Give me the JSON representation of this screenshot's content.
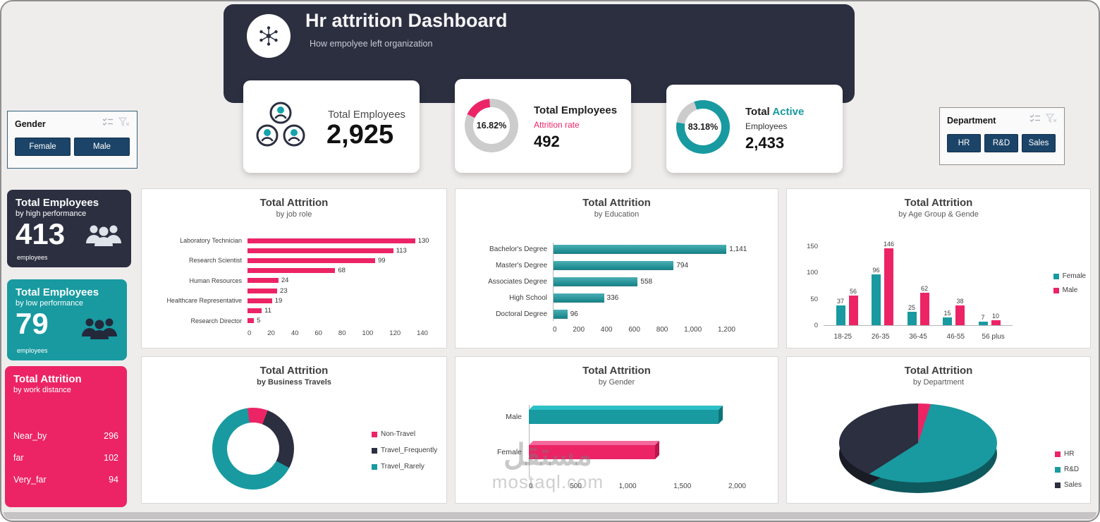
{
  "colors": {
    "navy": "#2b2f40",
    "teal": "#189aa0",
    "pink": "#ec2466",
    "gray_ring": "#cccccc",
    "button_navy": "#1b4468"
  },
  "header": {
    "title": "Hr attrition Dashboard",
    "subtitle": "How empolyee left organization"
  },
  "kpis": {
    "employees": {
      "label": "Total Employees",
      "value": "2,925"
    },
    "attrition": {
      "label": "Total Employees",
      "sublabel": "Attrition rate",
      "percent": "16.82%",
      "value": "492"
    },
    "active": {
      "label_1": "Total",
      "label_accent": "Active",
      "label_2": "Employees",
      "percent": "83.18%",
      "value": "2,433"
    }
  },
  "slicers": {
    "gender": {
      "title": "Gender",
      "options": [
        "Female",
        "Male"
      ]
    },
    "department": {
      "title": "Department",
      "options": [
        "HR",
        "R&D",
        "Sales"
      ]
    }
  },
  "side_cards": {
    "high": {
      "title": "Total Employees",
      "subtitle": "by high performance",
      "value": "413",
      "unit": "employees"
    },
    "low": {
      "title": "Total Employees",
      "subtitle": "by low performance",
      "value": "79",
      "unit": "employees"
    },
    "distance": {
      "title": "Total Attrition",
      "subtitle": "by work distance",
      "rows": [
        {
          "label": "Near_by",
          "value": "296"
        },
        {
          "label": "far",
          "value": "102"
        },
        {
          "label": "Very_far",
          "value": "94"
        }
      ]
    }
  },
  "chart_data": [
    {
      "id": "job-role",
      "type": "bar",
      "orientation": "horizontal",
      "title": "Total Attrition",
      "subtitle": "by job role",
      "color": "#ec2466",
      "xmax": 140,
      "xticks": [
        "0",
        "20",
        "40",
        "60",
        "80",
        "100",
        "120",
        "140"
      ],
      "items": [
        {
          "label": "Laboratory Technician",
          "value": 130
        },
        {
          "label": "",
          "value": 113
        },
        {
          "label": "Research Scientist",
          "value": 99
        },
        {
          "label": "",
          "value": 68
        },
        {
          "label": "Human Resources",
          "value": 24
        },
        {
          "label": "",
          "value": 23
        },
        {
          "label": "Healthcare Representative",
          "value": 19
        },
        {
          "label": "",
          "value": 11
        },
        {
          "label": "Research Director",
          "value": 5
        }
      ]
    },
    {
      "id": "education",
      "type": "bar",
      "orientation": "horizontal",
      "title": "Total Attrition",
      "subtitle": "by Education",
      "color": "#189aa0",
      "xmax": 1200,
      "xticks": [
        "0",
        "200",
        "400",
        "600",
        "800",
        "1,000",
        "1,200"
      ],
      "items": [
        {
          "label": "Bachelor's Degree",
          "value": 1141,
          "display": "1,141"
        },
        {
          "label": "Master's Degree",
          "value": 794,
          "display": "794"
        },
        {
          "label": "Associates Degree",
          "value": 558,
          "display": "558"
        },
        {
          "label": "High School",
          "value": 336,
          "display": "336"
        },
        {
          "label": "Doctoral Degree",
          "value": 96,
          "display": "96"
        }
      ]
    },
    {
      "id": "age-gender",
      "type": "bar",
      "grouped": true,
      "title": "Total Attrition",
      "subtitle": "by Age Group & Gende",
      "categories": [
        "18-25",
        "26-35",
        "36-45",
        "46-55",
        "56 plus"
      ],
      "series": [
        {
          "name": "Female",
          "color": "#189aa0",
          "values": [
            37,
            96,
            25,
            15,
            7
          ]
        },
        {
          "name": "Male",
          "color": "#ec2466",
          "values": [
            56,
            146,
            62,
            38,
            10
          ]
        }
      ],
      "yticks": [
        0,
        50,
        100,
        150
      ],
      "ymax": 160
    },
    {
      "id": "business-travel",
      "type": "pie",
      "donut": true,
      "title": "Total Attrition",
      "subtitle": "by Business Travels",
      "segments": [
        {
          "name": "Non-Travel",
          "color": "#ec2466",
          "percent": 8
        },
        {
          "name": "Travel_Frequently",
          "color": "#2b2f40",
          "percent": 27
        },
        {
          "name": "Travel_Rarely",
          "color": "#189aa0",
          "percent": 65
        }
      ]
    },
    {
      "id": "gender",
      "type": "bar",
      "orientation": "horizontal",
      "style": "3d",
      "title": "Total Attrition",
      "subtitle": "by Gender",
      "xmax": 2000,
      "xticks": [
        "0",
        "500",
        "1,000",
        "1,500",
        "2,000"
      ],
      "items": [
        {
          "label": "Male",
          "value": 1755,
          "color": "#189aa0",
          "light": "#2cc0c6",
          "dark": "#0e747a"
        },
        {
          "label": "Female",
          "value": 1170,
          "color": "#ec2466",
          "light": "#f4699b",
          "dark": "#b8174e"
        }
      ]
    },
    {
      "id": "department",
      "type": "pie",
      "style": "3d",
      "title": "Total Attrition",
      "subtitle": "by Department",
      "segments": [
        {
          "name": "HR",
          "color": "#ec2466",
          "percent": 5
        },
        {
          "name": "R&D",
          "color": "#189aa0",
          "percent": 61
        },
        {
          "name": "Sales",
          "color": "#2b2f40",
          "percent": 34
        }
      ]
    }
  ],
  "watermark": {
    "arabic": "مستقل",
    "latin": "mostaql.com"
  }
}
